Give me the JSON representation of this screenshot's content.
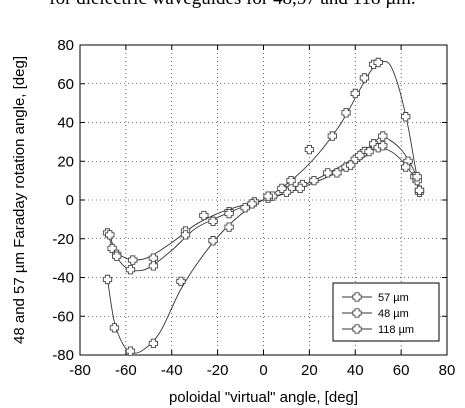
{
  "caption": "for dielectric waveguides for 48,57 and 118 µm.",
  "chart_data": {
    "type": "scatter",
    "xlabel": "poloidal \"virtual\" angle, [deg]",
    "ylabel": "48 and 57 µm Faraday rotation angle, [deg]",
    "xlim": [
      -80,
      80
    ],
    "ylim": [
      -80,
      80
    ],
    "xticks": [
      -80,
      -60,
      -40,
      -20,
      0,
      20,
      40,
      60,
      80
    ],
    "yticks": [
      -80,
      -60,
      -40,
      -20,
      0,
      20,
      40,
      60,
      80
    ],
    "grid": true,
    "legend_position": "bottom-right",
    "marker": "plus-cross",
    "series": [
      {
        "name": "57 µm",
        "points": [
          [
            -68,
            -17
          ],
          [
            -66,
            -25
          ],
          [
            -64,
            -28
          ],
          [
            -57,
            -31
          ],
          [
            -48,
            -30
          ],
          [
            -34,
            -16
          ],
          [
            -26,
            -8
          ],
          [
            -15,
            -6
          ],
          [
            -4,
            -1
          ],
          [
            4,
            2
          ],
          [
            12,
            6
          ],
          [
            17,
            8
          ],
          [
            28,
            14
          ],
          [
            36,
            17
          ],
          [
            40,
            21
          ],
          [
            44,
            25
          ],
          [
            48,
            29
          ],
          [
            52,
            33
          ],
          [
            63,
            20
          ],
          [
            67,
            10
          ],
          [
            68,
            5
          ]
        ],
        "curve": [
          [
            -68,
            -17
          ],
          [
            -65,
            -26
          ],
          [
            -60,
            -30
          ],
          [
            -56,
            -31
          ],
          [
            -50,
            -29.5
          ],
          [
            -40,
            -22
          ],
          [
            -30,
            -13
          ],
          [
            -20,
            -7
          ],
          [
            -10,
            -3
          ],
          [
            0,
            0
          ],
          [
            10,
            4
          ],
          [
            20,
            9
          ],
          [
            30,
            15
          ],
          [
            40,
            22
          ],
          [
            47,
            28
          ],
          [
            51,
            32.5
          ],
          [
            55,
            31
          ],
          [
            60,
            26
          ],
          [
            64,
            19
          ],
          [
            67,
            11
          ],
          [
            68,
            5
          ]
        ]
      },
      {
        "name": "48 µm",
        "points": [
          [
            -67,
            -18
          ],
          [
            -64,
            -29
          ],
          [
            -58,
            -36
          ],
          [
            -48,
            -34
          ],
          [
            -34,
            -18
          ],
          [
            -22,
            -11
          ],
          [
            -15,
            -7
          ],
          [
            -5,
            -2
          ],
          [
            2,
            1
          ],
          [
            10,
            4
          ],
          [
            16,
            6
          ],
          [
            22,
            10
          ],
          [
            32,
            14
          ],
          [
            38,
            18
          ],
          [
            42,
            23
          ],
          [
            46,
            25
          ],
          [
            50,
            27
          ],
          [
            52,
            28
          ],
          [
            62,
            17
          ],
          [
            66,
            12
          ],
          [
            68,
            4
          ]
        ],
        "curve": [
          [
            -67,
            -18
          ],
          [
            -64,
            -29
          ],
          [
            -60,
            -35
          ],
          [
            -56,
            -36.5
          ],
          [
            -50,
            -35
          ],
          [
            -40,
            -26
          ],
          [
            -30,
            -15
          ],
          [
            -20,
            -9
          ],
          [
            -10,
            -4
          ],
          [
            0,
            0
          ],
          [
            10,
            3.5
          ],
          [
            20,
            8
          ],
          [
            30,
            13
          ],
          [
            40,
            19
          ],
          [
            46,
            24
          ],
          [
            50,
            27
          ],
          [
            54,
            26
          ],
          [
            58,
            23
          ],
          [
            62,
            18
          ],
          [
            66,
            11
          ],
          [
            68,
            4
          ]
        ]
      },
      {
        "name": "118 µm",
        "points": [
          [
            -68,
            -41
          ],
          [
            -65,
            -66
          ],
          [
            -58,
            -78
          ],
          [
            -48,
            -74
          ],
          [
            -36,
            -42
          ],
          [
            -22,
            -21
          ],
          [
            -15,
            -14
          ],
          [
            -8,
            -4
          ],
          [
            2,
            2
          ],
          [
            8,
            6
          ],
          [
            12,
            10
          ],
          [
            20,
            26
          ],
          [
            30,
            33
          ],
          [
            36,
            45
          ],
          [
            40,
            55
          ],
          [
            44,
            63
          ],
          [
            48,
            70
          ],
          [
            50,
            71
          ],
          [
            62,
            43
          ],
          [
            67,
            12
          ],
          [
            68,
            5
          ]
        ],
        "curve": [
          [
            -68,
            -41
          ],
          [
            -65,
            -63
          ],
          [
            -61,
            -75
          ],
          [
            -57,
            -79
          ],
          [
            -52,
            -77
          ],
          [
            -45,
            -68
          ],
          [
            -36,
            -46
          ],
          [
            -26,
            -28
          ],
          [
            -16,
            -14
          ],
          [
            -6,
            -4
          ],
          [
            4,
            3
          ],
          [
            14,
            12
          ],
          [
            24,
            24
          ],
          [
            34,
            40
          ],
          [
            42,
            57
          ],
          [
            47,
            67
          ],
          [
            51,
            71
          ],
          [
            55,
            70
          ],
          [
            59,
            58
          ],
          [
            63,
            38
          ],
          [
            66,
            18
          ],
          [
            68,
            5
          ]
        ]
      }
    ]
  }
}
